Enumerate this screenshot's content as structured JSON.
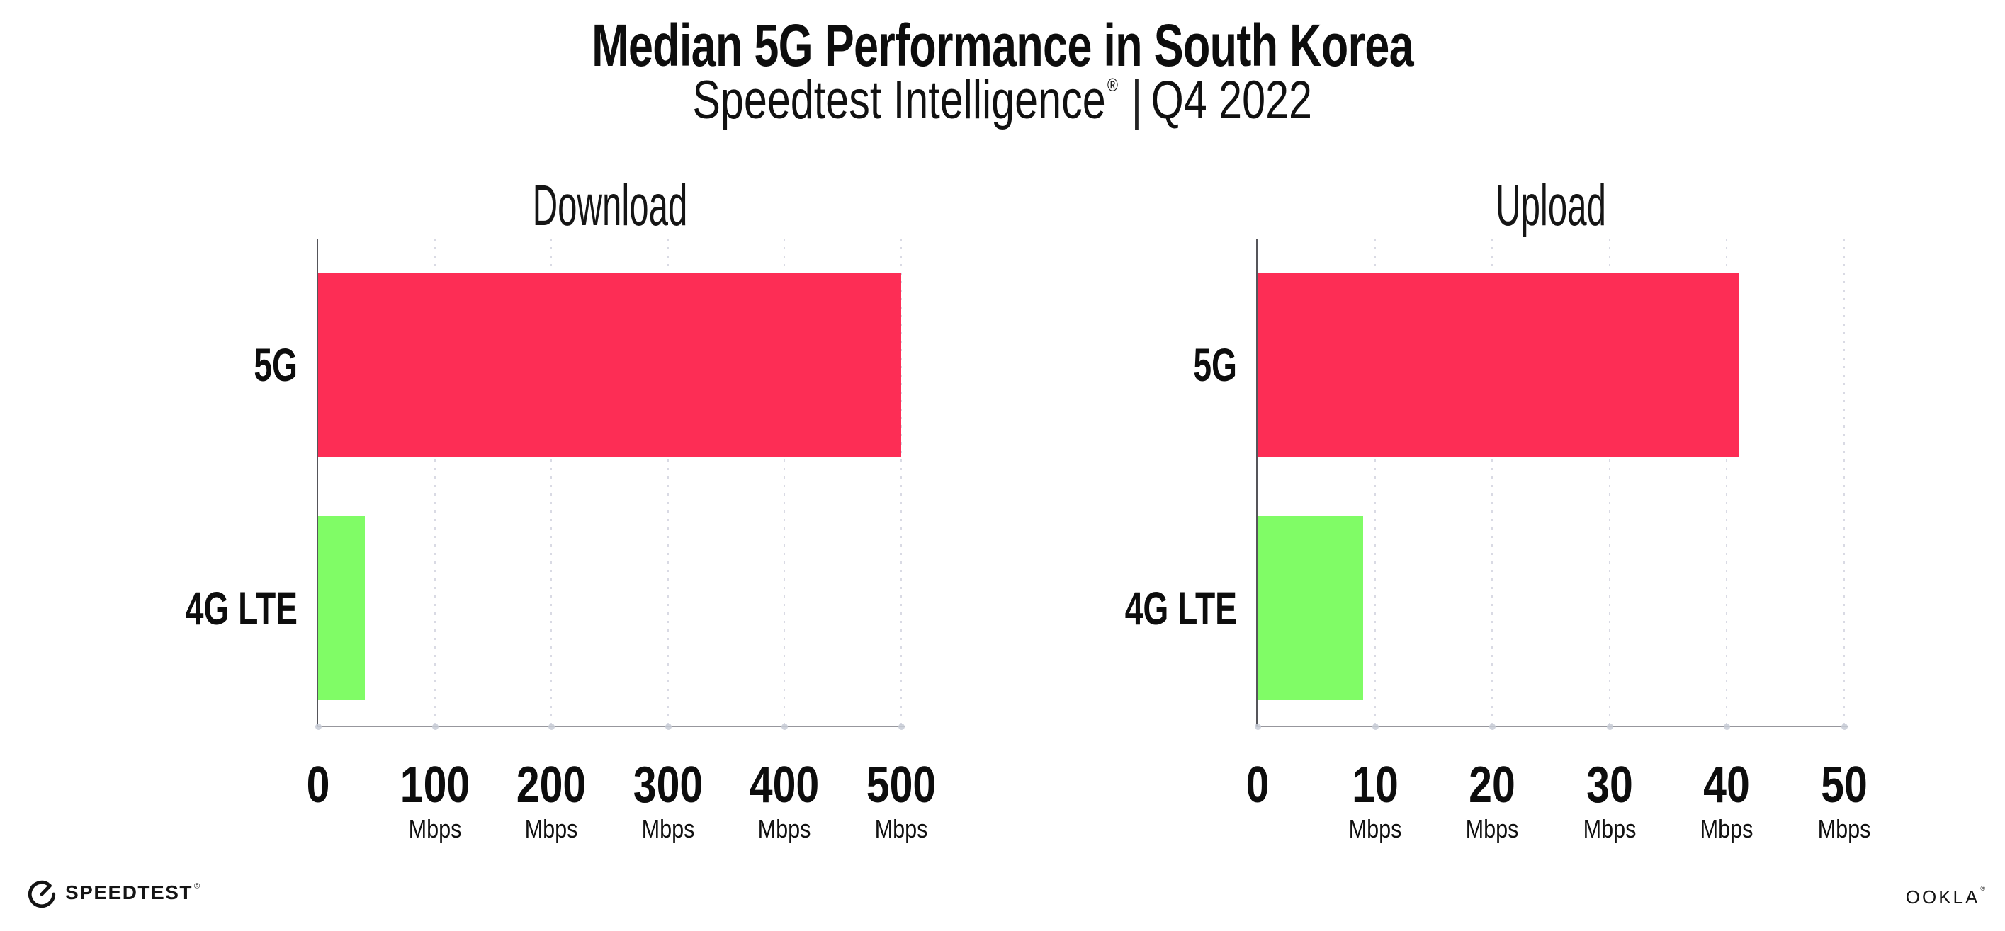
{
  "page": {
    "title": "Median 5G Performance in South Korea",
    "subtitle_brand": "Speedtest Intelligence",
    "subtitle_reg": "®",
    "subtitle_separator": "|",
    "subtitle_period": "Q4 2022"
  },
  "footer": {
    "speedtest_label": "SPEEDTEST",
    "speedtest_mark": "®",
    "ookla_label": "OOKLA",
    "ookla_mark": "®"
  },
  "colors": {
    "bar_5g": "#fd2d55",
    "bar_4g_lte": "#80fc66",
    "gridline": "#d9dae4",
    "x_axis": "#97979d",
    "y_axis": "#55555a",
    "text": "#0d0d0d",
    "background": "#ffffff"
  },
  "chart_data": [
    {
      "type": "bar",
      "orientation": "horizontal",
      "title": "Download",
      "categories": [
        "5G",
        "4G LTE"
      ],
      "values": [
        500,
        40
      ],
      "unit": "Mbps",
      "xlabel": "",
      "ylabel": "",
      "xlim": [
        0,
        500
      ],
      "xticks": [
        0,
        100,
        200,
        300,
        400,
        500
      ],
      "tick_unit_label": "Mbps",
      "unit_shown_on_zero_tick": false,
      "bar_colors": [
        "#fd2d55",
        "#80fc66"
      ],
      "grid": "vertical dotted gridlines at each tick",
      "legend": "none"
    },
    {
      "type": "bar",
      "orientation": "horizontal",
      "title": "Upload",
      "categories": [
        "5G",
        "4G LTE"
      ],
      "values": [
        41,
        9
      ],
      "unit": "Mbps",
      "xlabel": "",
      "ylabel": "",
      "xlim": [
        0,
        50
      ],
      "xticks": [
        0,
        10,
        20,
        30,
        40,
        50
      ],
      "tick_unit_label": "Mbps",
      "unit_shown_on_zero_tick": false,
      "bar_colors": [
        "#fd2d55",
        "#80fc66"
      ],
      "grid": "vertical dotted gridlines at each tick",
      "legend": "none"
    }
  ]
}
